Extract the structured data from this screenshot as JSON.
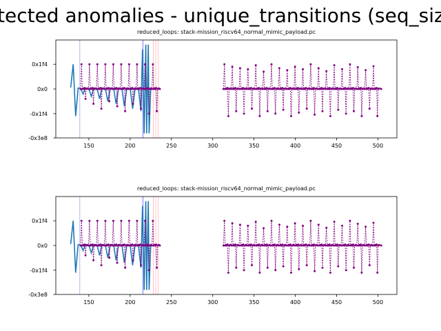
{
  "figure": {
    "title": "tected anomalies - unique_transitions (seq_siz"
  },
  "colors": {
    "signal": "#1f77b4",
    "anomaly": "#800080",
    "marker_blue": "#5555ff",
    "marker_red": "#ff7777"
  },
  "chart_data": [
    {
      "type": "line",
      "title": "reduced_loops: stack-mission_riscv64_normal_mimic_payload.pc",
      "xlim": [
        110,
        523
      ],
      "ylim": [
        -0.9916,
        0.9916
      ],
      "x_ticks": [
        150,
        200,
        250,
        300,
        350,
        400,
        450,
        500
      ],
      "y_ticks": [
        {
          "value": 0.5,
          "label": "0x1f4"
        },
        {
          "value": 0,
          "label": "0x0"
        },
        {
          "value": -0.5,
          "label": "-0x1f4"
        },
        {
          "value": -0.9916,
          "label": "-0x3e8"
        }
      ],
      "vertical_markers": [
        {
          "x": 139,
          "color": "blue"
        },
        {
          "x": 215,
          "color": "blue"
        },
        {
          "x": 216,
          "color": "blue"
        },
        {
          "x": 228,
          "color": "red"
        },
        {
          "x": 231,
          "color": "red"
        },
        {
          "x": 234,
          "color": "red"
        }
      ],
      "series": [
        {
          "style": "solid",
          "points": [
            [
              128,
              0.03
            ],
            [
              131,
              0.5
            ],
            [
              134,
              -0.55
            ],
            [
              137,
              0.02
            ],
            [
              140,
              0.01
            ],
            [
              143,
              -0.1
            ],
            [
              146,
              0.02
            ],
            [
              150,
              0.01
            ],
            [
              153,
              -0.15
            ],
            [
              156,
              0.02
            ],
            [
              160,
              0.01
            ],
            [
              163,
              -0.2
            ],
            [
              166,
              0.02
            ],
            [
              170,
              0.01
            ],
            [
              173,
              -0.25
            ],
            [
              176,
              0.02
            ],
            [
              180,
              0.01
            ],
            [
              183,
              -0.3
            ],
            [
              186,
              0.02
            ],
            [
              190,
              0.01
            ],
            [
              193,
              -0.35
            ],
            [
              196,
              0.02
            ],
            [
              200,
              0.01
            ],
            [
              203,
              -0.4
            ],
            [
              206,
              0.02
            ],
            [
              210,
              0.01
            ],
            [
              213,
              -0.45
            ],
            [
              215,
              0.8
            ],
            [
              217,
              -0.9
            ],
            [
              219,
              0.9
            ],
            [
              220,
              -0.9
            ],
            [
              222,
              0.9
            ],
            [
              223,
              -0.9
            ],
            [
              225,
              0.02
            ]
          ]
        },
        {
          "style": "dashed-markers",
          "segments": [
            {
              "x_start": 140,
              "x_end": 236,
              "period": 9.6,
              "peaks": [
                0.5,
                0.5,
                0.5,
                0.5,
                0.5,
                0.5,
                0.5,
                0.5,
                0.5,
                0.5
              ],
              "troughs": [
                -0.2,
                -0.3,
                -0.4,
                -0.25,
                -0.35,
                -0.45,
                -0.3,
                -0.4,
                -0.5,
                -0.45
              ]
            },
            {
              "x_start": 313,
              "x_end": 504,
              "period": 9.5,
              "peaks": [
                0.5,
                0.45,
                0.42,
                0.4,
                0.48,
                0.35,
                0.5,
                0.42,
                0.38,
                0.45,
                0.4,
                0.5,
                0.42,
                0.36,
                0.48,
                0.4,
                0.5,
                0.44,
                0.38,
                0.46
              ],
              "troughs": [
                -0.55,
                -0.45,
                -0.5,
                -0.4,
                -0.55,
                -0.45,
                -0.5,
                -0.42,
                -0.55,
                -0.48,
                -0.4,
                -0.52,
                -0.45,
                -0.55,
                -0.42,
                -0.5,
                -0.45,
                -0.55,
                -0.4,
                -0.55
              ]
            }
          ]
        }
      ]
    },
    {
      "type": "line",
      "title": "reduced_loops: stack-mission_riscv64_normal_mimic_payload.pc",
      "xlim": [
        110,
        523
      ],
      "ylim": [
        -0.9916,
        0.9916
      ],
      "x_ticks": [
        150,
        200,
        250,
        300,
        350,
        400,
        450,
        500
      ],
      "y_ticks": [
        {
          "value": 0.5,
          "label": "0x1f4"
        },
        {
          "value": 0,
          "label": "0x0"
        },
        {
          "value": -0.5,
          "label": "-0x1f4"
        },
        {
          "value": -0.9916,
          "label": "-0x3e8"
        }
      ],
      "vertical_markers": [
        {
          "x": 139,
          "color": "blue"
        },
        {
          "x": 215,
          "color": "blue"
        },
        {
          "x": 216,
          "color": "blue"
        },
        {
          "x": 228,
          "color": "red"
        },
        {
          "x": 231,
          "color": "red"
        },
        {
          "x": 234,
          "color": "red"
        }
      ],
      "series": [
        {
          "style": "solid",
          "points": [
            [
              128,
              0.03
            ],
            [
              131,
              0.5
            ],
            [
              134,
              -0.55
            ],
            [
              137,
              0.02
            ],
            [
              140,
              0.01
            ],
            [
              143,
              -0.1
            ],
            [
              146,
              0.02
            ],
            [
              150,
              0.01
            ],
            [
              153,
              -0.15
            ],
            [
              156,
              0.02
            ],
            [
              160,
              0.01
            ],
            [
              163,
              -0.2
            ],
            [
              166,
              0.02
            ],
            [
              170,
              0.01
            ],
            [
              173,
              -0.25
            ],
            [
              176,
              0.02
            ],
            [
              180,
              0.01
            ],
            [
              183,
              -0.3
            ],
            [
              186,
              0.02
            ],
            [
              190,
              0.01
            ],
            [
              193,
              -0.35
            ],
            [
              196,
              0.02
            ],
            [
              200,
              0.01
            ],
            [
              203,
              -0.4
            ],
            [
              206,
              0.02
            ],
            [
              210,
              0.01
            ],
            [
              213,
              -0.45
            ],
            [
              215,
              0.8
            ],
            [
              217,
              -0.9
            ],
            [
              219,
              0.9
            ],
            [
              220,
              -0.9
            ],
            [
              222,
              0.9
            ],
            [
              223,
              -0.9
            ],
            [
              225,
              0.02
            ]
          ]
        },
        {
          "style": "dashed-markers",
          "segments": [
            {
              "x_start": 140,
              "x_end": 236,
              "period": 9.6,
              "peaks": [
                0.5,
                0.5,
                0.5,
                0.5,
                0.5,
                0.5,
                0.5,
                0.5,
                0.5,
                0.5
              ],
              "troughs": [
                -0.2,
                -0.3,
                -0.4,
                -0.25,
                -0.35,
                -0.45,
                -0.3,
                -0.4,
                -0.5,
                -0.45
              ]
            },
            {
              "x_start": 313,
              "x_end": 504,
              "period": 9.5,
              "peaks": [
                0.5,
                0.45,
                0.42,
                0.4,
                0.48,
                0.35,
                0.5,
                0.42,
                0.38,
                0.45,
                0.4,
                0.5,
                0.42,
                0.36,
                0.48,
                0.4,
                0.5,
                0.44,
                0.38,
                0.46
              ],
              "troughs": [
                -0.55,
                -0.45,
                -0.5,
                -0.4,
                -0.55,
                -0.45,
                -0.5,
                -0.42,
                -0.55,
                -0.48,
                -0.4,
                -0.52,
                -0.45,
                -0.55,
                -0.42,
                -0.5,
                -0.45,
                -0.55,
                -0.4,
                -0.55
              ]
            }
          ]
        }
      ]
    }
  ]
}
